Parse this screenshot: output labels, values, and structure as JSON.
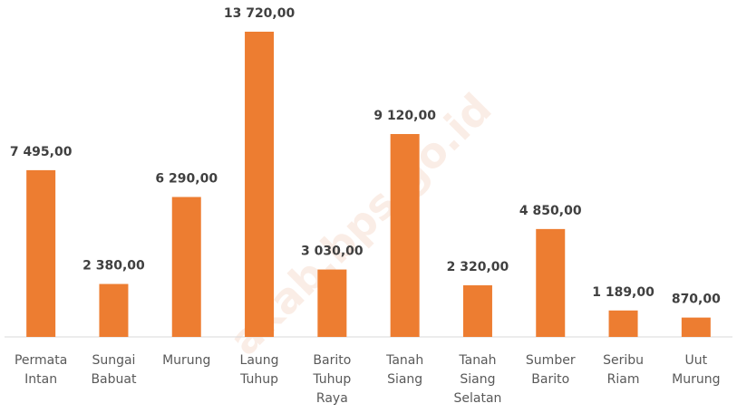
{
  "chart_data": {
    "type": "bar",
    "categories": [
      "Permata Intan",
      "Sungai Babuat",
      "Murung",
      "Laung Tuhup",
      "Barito Tuhup Raya",
      "Tanah Siang",
      "Tanah Siang Selatan",
      "Sumber Barito",
      "Seribu Riam",
      "Uut Murung"
    ],
    "values": [
      7495,
      2380,
      6290,
      13720,
      3030,
      9120,
      2320,
      4850,
      1189,
      870
    ],
    "value_labels": [
      "7 495,00",
      "2 380,00",
      "6 290,00",
      "13 720,00",
      "3 030,00",
      "9 120,00",
      "2 320,00",
      "4 850,00",
      "1 189,00",
      "870,00"
    ],
    "color": "#ed7d31",
    "watermark": "akab.bps.go.id"
  }
}
